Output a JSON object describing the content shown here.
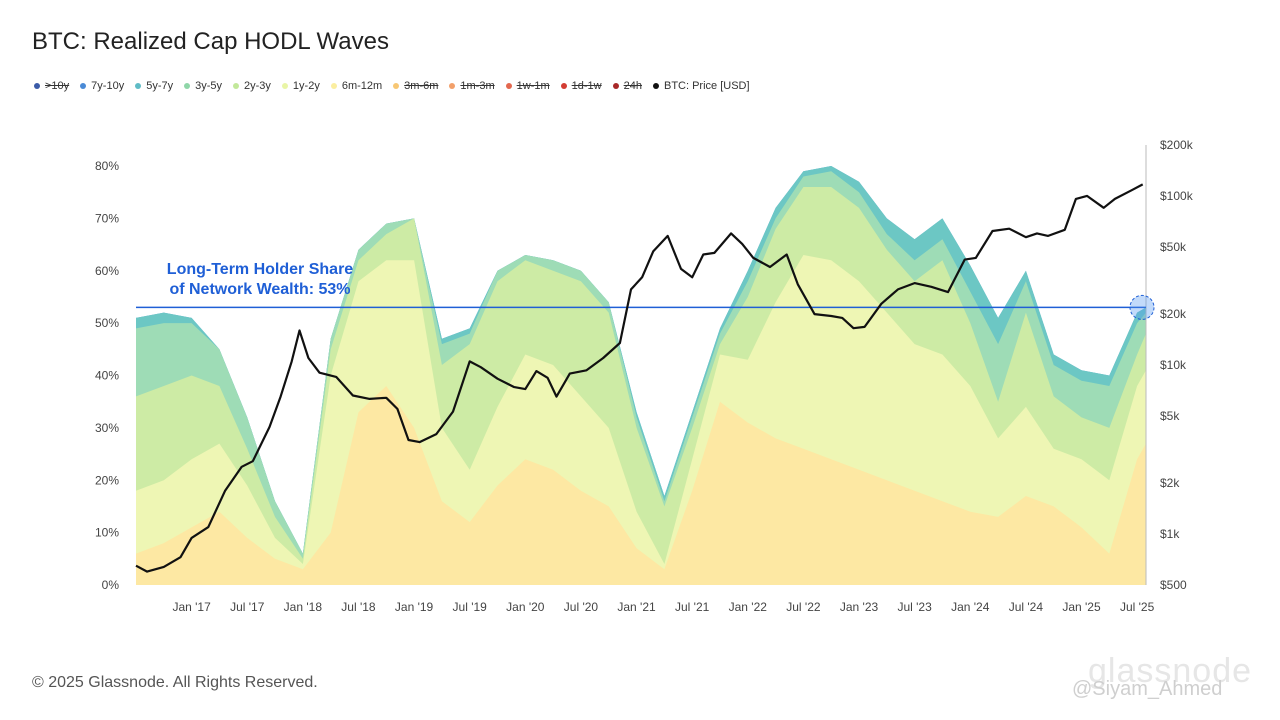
{
  "title": "BTC: Realized Cap HODL Waves",
  "legend": [
    {
      "label": ">10y",
      "color": "#3b5ba8",
      "active": false
    },
    {
      "label": "7y-10y",
      "color": "#4a8ad6",
      "active": true
    },
    {
      "label": "5y-7y",
      "color": "#5fbcc6",
      "active": true
    },
    {
      "label": "3y-5y",
      "color": "#8fd6a8",
      "active": true
    },
    {
      "label": "2y-3y",
      "color": "#c2e89a",
      "active": true
    },
    {
      "label": "1y-2y",
      "color": "#e9f5a6",
      "active": true
    },
    {
      "label": "6m-12m",
      "color": "#fbeea0",
      "active": true
    },
    {
      "label": "3m-6m",
      "color": "#f7c774",
      "active": false
    },
    {
      "label": "1m-3m",
      "color": "#f2a06a",
      "active": false
    },
    {
      "label": "1w-1m",
      "color": "#e3684f",
      "active": false
    },
    {
      "label": "1d-1w",
      "color": "#d33d33",
      "active": false
    },
    {
      "label": "24h",
      "color": "#a82828",
      "active": false
    },
    {
      "label": "BTC: Price [USD]",
      "color": "#111111",
      "active": true
    }
  ],
  "annotation": {
    "line1": "Long-Term Holder Share",
    "line2": "of Network Wealth: 53%",
    "value": 53,
    "color": "#1f5fd6"
  },
  "footer": "© 2025 Glassnode. All Rights Reserved.",
  "watermark": "@Siyam_Ahmed",
  "brand_watermark": "glassnode",
  "chart_data": {
    "type": "area",
    "title": "BTC: Realized Cap HODL Waves",
    "x_ticks": [
      "Jan '17",
      "Jul '17",
      "Jan '18",
      "Jul '18",
      "Jan '19",
      "Jul '19",
      "Jan '20",
      "Jul '20",
      "Jan '21",
      "Jul '21",
      "Jan '22",
      "Jul '22",
      "Jan '23",
      "Jul '23",
      "Jan '24",
      "Jul '24",
      "Jan '25",
      "Jul '25"
    ],
    "x_range": [
      2016.5,
      2025.58
    ],
    "y_left_ticks": [
      "0%",
      "10%",
      "20%",
      "30%",
      "40%",
      "50%",
      "60%",
      "70%",
      "80%"
    ],
    "y_left_range": [
      0,
      80
    ],
    "y_right_ticks": [
      "$500",
      "$1k",
      "$2k",
      "$5k",
      "$10k",
      "$20k",
      "$50k",
      "$100k",
      "$200k"
    ],
    "y_right_values": [
      500,
      1000,
      2000,
      5000,
      10000,
      20000,
      50000,
      100000,
      200000
    ],
    "y_right_scale": "log",
    "y_right_range": [
      500,
      200000
    ],
    "reference_line": 53,
    "x": [
      2016.5,
      2016.75,
      2017.0,
      2017.25,
      2017.5,
      2017.75,
      2018.0,
      2018.25,
      2018.5,
      2018.75,
      2019.0,
      2019.25,
      2019.5,
      2019.75,
      2020.0,
      2020.25,
      2020.5,
      2020.75,
      2021.0,
      2021.25,
      2021.5,
      2021.75,
      2022.0,
      2022.25,
      2022.5,
      2022.75,
      2023.0,
      2023.25,
      2023.5,
      2023.75,
      2024.0,
      2024.25,
      2024.5,
      2024.75,
      2025.0,
      2025.25,
      2025.5,
      2025.58
    ],
    "series": [
      {
        "name": "6m-12m",
        "color": "#fde8a3",
        "values": [
          6,
          8,
          11,
          14,
          9,
          5,
          3,
          10,
          33,
          38,
          30,
          16,
          12,
          19,
          24,
          22,
          18,
          15,
          7,
          3,
          18,
          35,
          31,
          28,
          26,
          24,
          22,
          20,
          18,
          16,
          14,
          13,
          17,
          15,
          11,
          6,
          24,
          27
        ]
      },
      {
        "name": "1y-2y",
        "color": "#eef6b4",
        "values": [
          18,
          20,
          24,
          27,
          19,
          9,
          4,
          40,
          58,
          62,
          62,
          30,
          22,
          34,
          44,
          42,
          36,
          30,
          14,
          4,
          24,
          44,
          43,
          54,
          63,
          62,
          58,
          52,
          46,
          44,
          38,
          28,
          34,
          26,
          24,
          20,
          38,
          41
        ]
      },
      {
        "name": "2y-3y",
        "color": "#cdeba5",
        "values": [
          36,
          38,
          40,
          38,
          26,
          13,
          5,
          45,
          62,
          67,
          70,
          42,
          46,
          58,
          62,
          60,
          58,
          52,
          30,
          15,
          30,
          46,
          55,
          68,
          76,
          76,
          72,
          64,
          58,
          62,
          50,
          35,
          52,
          36,
          32,
          30,
          44,
          48
        ]
      },
      {
        "name": "3y-5y",
        "color": "#9edcb6",
        "values": [
          49,
          50,
          50,
          45,
          32,
          16,
          6,
          47,
          64,
          69,
          70,
          46,
          48,
          60,
          63,
          62,
          60,
          54,
          32,
          16,
          32,
          48,
          58,
          70,
          78,
          79,
          75,
          67,
          62,
          66,
          56,
          46,
          58,
          42,
          39,
          38,
          50,
          52
        ]
      },
      {
        "name": "5y-7y",
        "color": "#6cc7c4",
        "values": [
          51,
          52,
          51,
          45,
          32,
          16,
          6,
          47,
          64,
          69,
          70,
          47,
          49,
          60,
          63,
          62,
          60,
          54,
          33,
          17,
          33,
          49,
          60,
          72,
          79,
          80,
          77,
          70,
          66,
          70,
          61,
          51,
          60,
          44,
          41,
          40,
          52,
          53
        ]
      },
      {
        "name": "7y-10y",
        "color": "#5b9fd9",
        "values": [
          51,
          52,
          51,
          45,
          32,
          16,
          6,
          47,
          64,
          69,
          70,
          47,
          49,
          60,
          63,
          62,
          60,
          54,
          33,
          17,
          33,
          49,
          60,
          72,
          79,
          80,
          77,
          70,
          66,
          70,
          61,
          51,
          60,
          44,
          41,
          40,
          52,
          53
        ]
      }
    ],
    "price": {
      "name": "BTC: Price [USD]",
      "color": "#111111",
      "x": [
        2016.5,
        2016.6,
        2016.75,
        2016.9,
        2017.0,
        2017.15,
        2017.3,
        2017.45,
        2017.55,
        2017.7,
        2017.8,
        2017.9,
        2017.97,
        2018.05,
        2018.15,
        2018.3,
        2018.45,
        2018.6,
        2018.75,
        2018.85,
        2018.95,
        2019.05,
        2019.2,
        2019.35,
        2019.5,
        2019.6,
        2019.75,
        2019.9,
        2020.0,
        2020.1,
        2020.2,
        2020.28,
        2020.4,
        2020.55,
        2020.7,
        2020.85,
        2020.95,
        2021.05,
        2021.15,
        2021.28,
        2021.4,
        2021.5,
        2021.6,
        2021.7,
        2021.85,
        2021.95,
        2022.05,
        2022.2,
        2022.35,
        2022.45,
        2022.6,
        2022.75,
        2022.85,
        2022.95,
        2023.05,
        2023.2,
        2023.35,
        2023.5,
        2023.65,
        2023.8,
        2023.95,
        2024.05,
        2024.2,
        2024.35,
        2024.5,
        2024.6,
        2024.7,
        2024.85,
        2024.95,
        2025.05,
        2025.2,
        2025.3,
        2025.45,
        2025.55
      ],
      "values": [
        650,
        600,
        640,
        730,
        950,
        1100,
        1800,
        2500,
        2700,
        4300,
        6500,
        10500,
        16000,
        11000,
        9000,
        8500,
        6600,
        6300,
        6400,
        5500,
        3600,
        3500,
        3900,
        5300,
        10500,
        9700,
        8300,
        7400,
        7200,
        9200,
        8400,
        6500,
        8900,
        9300,
        11000,
        13500,
        28000,
        33000,
        47000,
        58000,
        37000,
        33000,
        45000,
        46000,
        60000,
        52000,
        43000,
        38000,
        45000,
        30000,
        20000,
        19500,
        19000,
        16500,
        16800,
        23000,
        28000,
        30500,
        29000,
        27000,
        42000,
        43000,
        62000,
        64000,
        57000,
        60000,
        58000,
        63000,
        96000,
        100000,
        85000,
        96000,
        108000,
        117000
      ]
    }
  }
}
